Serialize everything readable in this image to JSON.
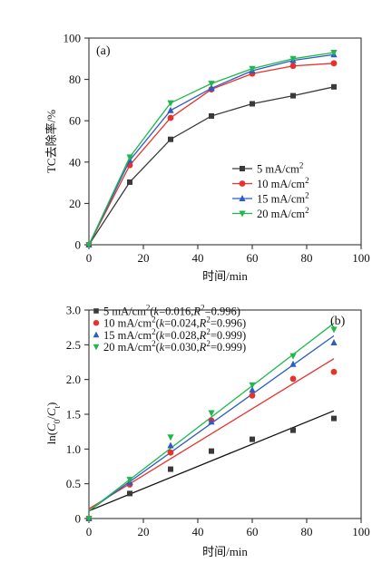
{
  "chart_data": [
    {
      "type": "line",
      "panel_label": "(a)",
      "xlabel": "时间/min",
      "ylabel": "TC去除率/%",
      "xlim": [
        0,
        100
      ],
      "ylim": [
        0,
        100
      ],
      "xticks": [
        0,
        20,
        40,
        60,
        80,
        100
      ],
      "yticks": [
        0,
        20,
        40,
        60,
        80,
        100
      ],
      "legend_position": "bottom-right",
      "x": [
        0,
        15,
        30,
        45,
        60,
        75,
        90
      ],
      "series": [
        {
          "name": "5 mA/cm",
          "sup": "2",
          "color": "#3a3a3a",
          "marker": "square",
          "values": [
            0,
            30.3,
            51.0,
            62.3,
            68.2,
            72.1,
            76.4
          ]
        },
        {
          "name": "10 mA/cm",
          "sup": "2",
          "color": "#e8312a",
          "marker": "circle",
          "values": [
            0,
            38.5,
            61.4,
            75.2,
            82.8,
            86.5,
            87.8
          ]
        },
        {
          "name": "15 mA/cm",
          "sup": "2",
          "color": "#2b5cc8",
          "marker": "triangle-up",
          "values": [
            0,
            40.8,
            65.0,
            75.7,
            84.2,
            89.2,
            92.0
          ]
        },
        {
          "name": "20 mA/cm",
          "sup": "2",
          "color": "#1fb84a",
          "marker": "triangle-down",
          "values": [
            0,
            42.4,
            68.6,
            78.0,
            85.2,
            90.0,
            93.0
          ]
        }
      ]
    },
    {
      "type": "scatter",
      "panel_label": "(b)",
      "xlabel": "时间/min",
      "ylabel_parts": [
        "ln(",
        "C",
        "0",
        "/",
        "C",
        "t",
        ")"
      ],
      "xlim": [
        0,
        100
      ],
      "ylim": [
        0,
        3.0
      ],
      "xticks": [
        0,
        20,
        40,
        60,
        80,
        100
      ],
      "yticks": [
        "0",
        "0.5",
        "1.0",
        "1.5",
        "2.0",
        "2.5",
        "3.0"
      ],
      "legend_position": "top-left",
      "x": [
        0,
        15,
        30,
        45,
        60,
        75,
        90
      ],
      "series": [
        {
          "label_parts": [
            "5 mA/cm",
            "2",
            "(",
            "k",
            "=0.016,",
            "R",
            "2",
            "=0.996)"
          ],
          "color": "#3a3a3a",
          "line_color": "#111111",
          "marker": "square",
          "values": [
            0,
            0.36,
            0.71,
            0.97,
            1.14,
            1.27,
            1.44
          ],
          "fit": {
            "k": 0.016,
            "intercept": 0.11
          }
        },
        {
          "label_parts": [
            "10 mA/cm",
            "2",
            "(",
            "k",
            "=0.024,",
            "R",
            "2",
            "=0.996)"
          ],
          "color": "#e8312a",
          "line_color": "#e8312a",
          "marker": "circle",
          "values": [
            0,
            0.49,
            0.95,
            1.41,
            1.77,
            2.01,
            2.11
          ],
          "fit": {
            "k": 0.024,
            "intercept": 0.14
          }
        },
        {
          "label_parts": [
            "15 mA/cm",
            "2",
            "(",
            "k",
            "=0.028,",
            "R",
            "2",
            "=0.999)"
          ],
          "color": "#2b5cc8",
          "line_color": "#2b5cc8",
          "marker": "triangle-up",
          "values": [
            0,
            0.52,
            1.05,
            1.39,
            1.85,
            2.22,
            2.53
          ],
          "fit": {
            "k": 0.028,
            "intercept": 0.11
          }
        },
        {
          "label_parts": [
            "20 mA/cm",
            "2",
            "(",
            "k",
            "=0.030,",
            "R",
            "2",
            "=0.999)"
          ],
          "color": "#1fb84a",
          "line_color": "#1fb84a",
          "marker": "triangle-down",
          "values": [
            0,
            0.56,
            1.17,
            1.52,
            1.92,
            2.34,
            2.72
          ],
          "fit": {
            "k": 0.03,
            "intercept": 0.11
          }
        }
      ]
    }
  ]
}
